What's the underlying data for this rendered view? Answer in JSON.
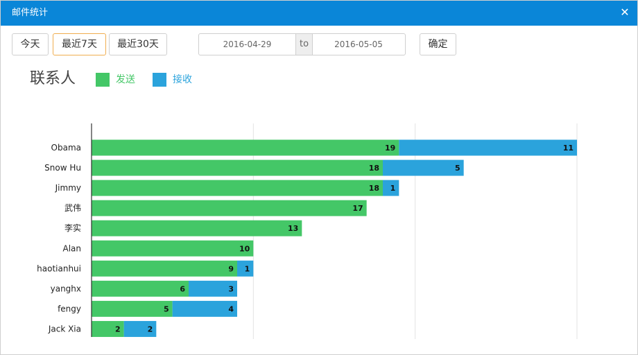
{
  "window": {
    "title": "邮件统计"
  },
  "toolbar": {
    "buttons": [
      "今天",
      "最近7天",
      "最近30天"
    ],
    "active": "最近7天",
    "date_from": "2016-04-29",
    "date_to": "2016-05-05",
    "to_label": "to",
    "confirm_label": "确定"
  },
  "colors": {
    "sent": "#44c767",
    "received": "#2ba3dc",
    "titlebar": "#0a86d8"
  },
  "chart_data": {
    "type": "bar",
    "orientation": "horizontal",
    "stacked": true,
    "title": "联系人",
    "legend_position": "top-left",
    "grid": true,
    "xlim": [
      0,
      30
    ],
    "categories": [
      "Obama",
      "Snow Hu",
      "Jimmy",
      "武伟",
      "李实",
      "Alan",
      "haotianhui",
      "yanghx",
      "fengy",
      "Jack Xia"
    ],
    "series": [
      {
        "name": "发送",
        "color": "#44c767",
        "values": [
          19,
          18,
          18,
          17,
          13,
          10,
          9,
          6,
          5,
          2
        ]
      },
      {
        "name": "接收",
        "color": "#2ba3dc",
        "values": [
          11,
          5,
          1,
          0,
          0,
          0,
          1,
          3,
          4,
          2
        ]
      }
    ]
  }
}
